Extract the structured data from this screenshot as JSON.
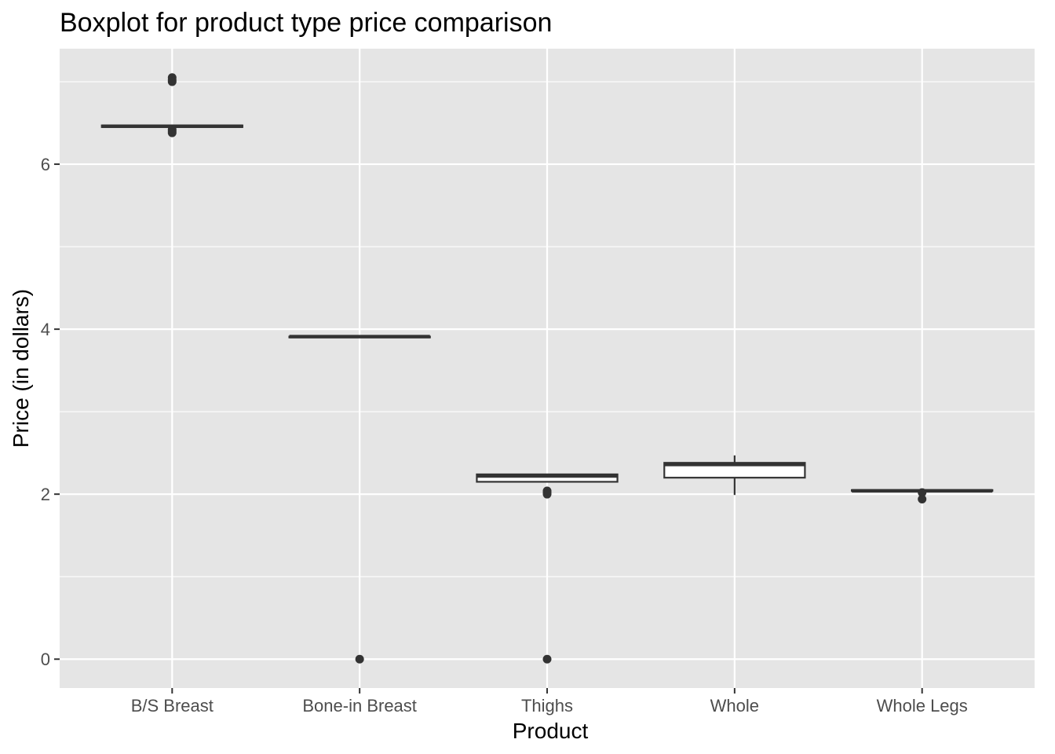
{
  "chart_data": {
    "type": "boxplot",
    "title": "Boxplot for product type price comparison",
    "xlabel": "Product",
    "ylabel": "Price (in dollars)",
    "categories": [
      "B/S Breast",
      "Bone-in Breast",
      "Thighs",
      "Whole",
      "Whole Legs"
    ],
    "yticks": [
      0,
      2,
      4,
      6
    ],
    "ylim": [
      -0.35,
      7.4
    ],
    "grid": true,
    "colors": {
      "panel": "#e5e5e5",
      "grid": "#ffffff",
      "box_fill": "#ffffff",
      "box_line": "#333333",
      "point": "#333333"
    },
    "boxes": [
      {
        "category": "B/S Breast",
        "lower_whisker": 6.45,
        "q1": 6.45,
        "median": 6.46,
        "q3": 6.47,
        "upper_whisker": 6.47,
        "outliers": [
          7.05,
          7.02,
          7.0,
          6.42,
          6.4,
          6.38
        ]
      },
      {
        "category": "Bone-in Breast",
        "lower_whisker": 3.9,
        "q1": 3.9,
        "median": 3.91,
        "q3": 3.91,
        "upper_whisker": 3.91,
        "outliers": [
          0.0
        ]
      },
      {
        "category": "Thighs",
        "lower_whisker": 2.14,
        "q1": 2.15,
        "median": 2.22,
        "q3": 2.24,
        "upper_whisker": 2.24,
        "outliers": [
          2.04,
          2.02,
          2.0,
          0.0
        ]
      },
      {
        "category": "Whole",
        "lower_whisker": 1.99,
        "q1": 2.2,
        "median": 2.36,
        "q3": 2.38,
        "upper_whisker": 2.47,
        "outliers": []
      },
      {
        "category": "Whole Legs",
        "lower_whisker": 2.04,
        "q1": 2.04,
        "median": 2.04,
        "q3": 2.05,
        "upper_whisker": 2.05,
        "outliers": [
          2.02,
          1.94
        ]
      }
    ]
  }
}
